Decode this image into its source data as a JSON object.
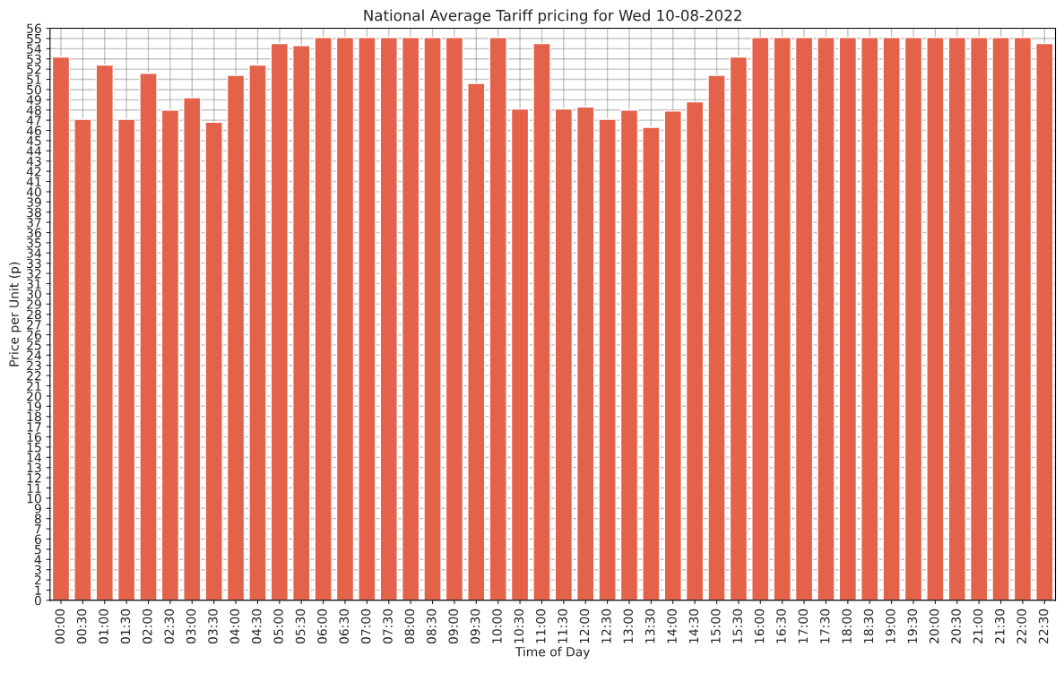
{
  "chart_data": {
    "type": "bar",
    "title": "National Average Tariff pricing for Wed 10-08-2022",
    "xlabel": "Time of Day",
    "ylabel": "Price per Unit (p)",
    "categories": [
      "00:00",
      "00:30",
      "01:00",
      "01:30",
      "02:00",
      "02:30",
      "03:00",
      "03:30",
      "04:00",
      "04:30",
      "05:00",
      "05:30",
      "06:00",
      "06:30",
      "07:00",
      "07:30",
      "08:00",
      "08:30",
      "09:00",
      "09:30",
      "10:00",
      "10:30",
      "11:00",
      "11:30",
      "12:00",
      "12:30",
      "13:00",
      "13:30",
      "14:00",
      "14:30",
      "15:00",
      "15:30",
      "16:00",
      "16:30",
      "17:00",
      "17:30",
      "18:00",
      "18:30",
      "19:00",
      "19:30",
      "20:00",
      "20:30",
      "21:00",
      "21:30",
      "22:00",
      "22:30"
    ],
    "values": [
      53.2,
      47.1,
      52.4,
      47.1,
      51.6,
      48.0,
      49.2,
      46.8,
      51.4,
      52.4,
      54.5,
      54.3,
      55.1,
      55.1,
      55.1,
      55.1,
      55.1,
      55.1,
      55.1,
      50.6,
      55.1,
      48.1,
      54.5,
      48.1,
      48.3,
      47.1,
      48.0,
      46.3,
      47.9,
      48.8,
      51.4,
      53.2,
      55.1,
      55.1,
      55.1,
      55.1,
      55.1,
      55.1,
      55.1,
      55.1,
      55.1,
      55.1,
      55.1,
      55.1,
      55.1,
      54.5
    ],
    "color": "#e5624a",
    "ylim": [
      0,
      56
    ],
    "yticks": [
      0,
      1,
      2,
      3,
      4,
      5,
      6,
      7,
      8,
      9,
      10,
      11,
      12,
      13,
      14,
      15,
      16,
      17,
      18,
      19,
      20,
      21,
      22,
      23,
      24,
      25,
      26,
      27,
      28,
      29,
      30,
      31,
      32,
      33,
      34,
      35,
      36,
      37,
      38,
      39,
      40,
      41,
      42,
      43,
      44,
      45,
      46,
      47,
      48,
      49,
      50,
      51,
      52,
      53,
      54,
      55,
      56
    ],
    "grid": true
  }
}
